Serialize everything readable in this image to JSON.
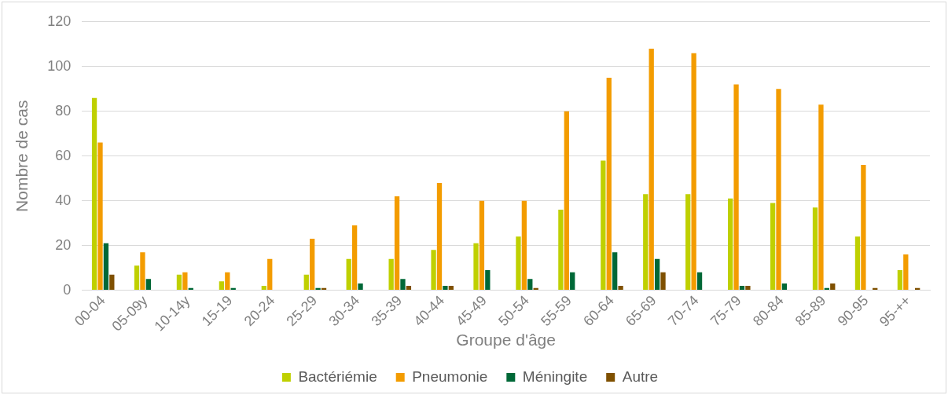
{
  "chart_data": {
    "type": "bar",
    "xlabel": "Groupe d'âge",
    "ylabel": "Nombre de cas",
    "categories": [
      "00-04",
      "05-09y",
      "10-14y",
      "15-19",
      "20-24",
      "25-29",
      "30-34",
      "35-39",
      "40-44",
      "45-49",
      "50-54",
      "55-59",
      "60-64",
      "65-69",
      "70-74",
      "75-79",
      "80-84",
      "85-89",
      "90-95",
      "95-++"
    ],
    "series": [
      {
        "name": "Bactériémie",
        "color": "#bfd000",
        "values": [
          86,
          11,
          7,
          4,
          2,
          7,
          14,
          14,
          18,
          21,
          24,
          36,
          58,
          43,
          43,
          41,
          39,
          37,
          24,
          9
        ]
      },
      {
        "name": "Pneumonie",
        "color": "#f39c00",
        "values": [
          66,
          17,
          8,
          8,
          14,
          23,
          29,
          42,
          48,
          40,
          40,
          80,
          95,
          108,
          106,
          92,
          90,
          83,
          56,
          16
        ]
      },
      {
        "name": "Méningite",
        "color": "#006837",
        "values": [
          21,
          5,
          1,
          1,
          0,
          1,
          3,
          5,
          2,
          9,
          5,
          8,
          17,
          14,
          8,
          2,
          3,
          1,
          0,
          0
        ]
      },
      {
        "name": "Autre",
        "color": "#7f5000",
        "values": [
          7,
          0,
          0,
          0,
          0,
          1,
          0,
          2,
          2,
          0,
          1,
          0,
          2,
          8,
          0,
          2,
          0,
          3,
          1,
          1
        ]
      }
    ],
    "ylim": [
      0,
      120
    ],
    "yticks": [
      0,
      20,
      40,
      60,
      80,
      100,
      120
    ],
    "grid": "y",
    "legend": "bottom"
  }
}
